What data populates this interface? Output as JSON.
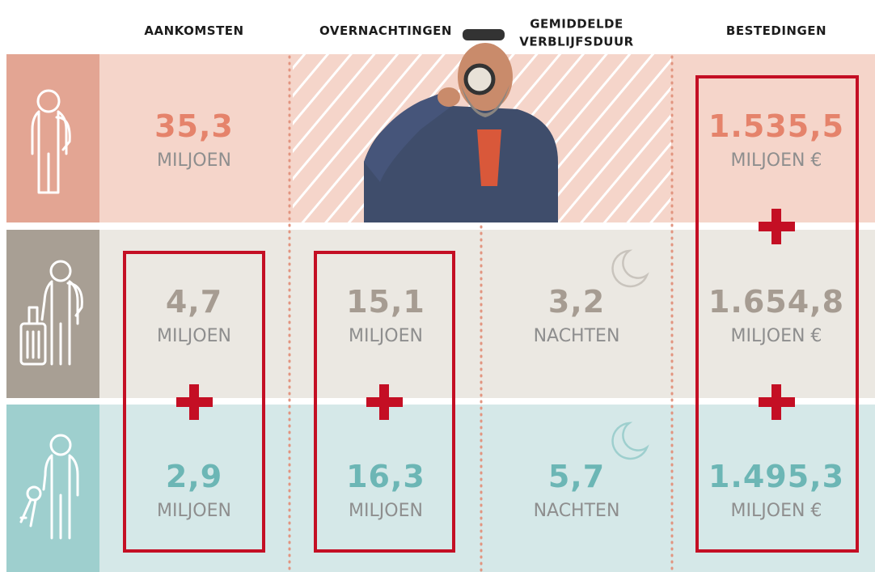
{
  "header": {
    "columns": {
      "aankomsten": [
        "AANKOMSTEN"
      ],
      "overnachtingen": [
        "OVERNACHTINGEN"
      ],
      "verblijfsduur": [
        "GEMIDDELDE",
        "VERBLIJFSDUUR"
      ],
      "bestedingen": [
        "BESTEDINGEN"
      ]
    }
  },
  "rows": [
    {
      "aankomsten": {
        "value": "35,3",
        "unit": "MILJOEN"
      },
      "bestedingen": {
        "value": "1.535,5",
        "unit": "MILJOEN €"
      }
    },
    {
      "aankomsten": {
        "value": "4,7",
        "unit": "MILJOEN"
      },
      "overnachtingen": {
        "value": "15,1",
        "unit": "MILJOEN"
      },
      "verblijfsduur": {
        "value": "3,2",
        "unit": "NACHTEN"
      },
      "bestedingen": {
        "value": "1.654,8",
        "unit": "MILJOEN €"
      }
    },
    {
      "aankomsten": {
        "value": "2,9",
        "unit": "MILJOEN"
      },
      "overnachtingen": {
        "value": "16,3",
        "unit": "MILJOEN"
      },
      "verblijfsduur": {
        "value": "5,7",
        "unit": "NACHTEN"
      },
      "bestedingen": {
        "value": "1.495,3",
        "unit": "MILJOEN €"
      }
    }
  ]
}
